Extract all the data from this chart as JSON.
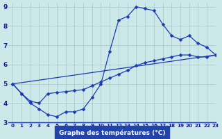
{
  "xlabel": "Graphe des températures (°C)",
  "xlim": [
    -0.5,
    23
  ],
  "ylim": [
    3,
    9.2
  ],
  "yticks": [
    3,
    4,
    5,
    6,
    7,
    8,
    9
  ],
  "xticks": [
    0,
    1,
    2,
    3,
    4,
    5,
    6,
    7,
    8,
    9,
    10,
    11,
    12,
    13,
    14,
    15,
    16,
    17,
    18,
    19,
    20,
    21,
    22,
    23
  ],
  "background_color": "#cce8e8",
  "grid_color": "#aacccc",
  "line_color": "#1a3ab5",
  "line1_x": [
    0,
    1,
    2,
    3,
    4,
    5,
    6,
    7,
    8,
    9,
    10,
    11,
    12,
    13,
    14,
    15,
    16,
    17,
    18,
    19,
    20,
    21,
    22,
    23
  ],
  "line1_y": [
    5.0,
    4.5,
    4.0,
    3.7,
    3.4,
    3.3,
    3.55,
    3.55,
    3.7,
    4.3,
    5.0,
    6.7,
    8.3,
    8.5,
    9.0,
    8.9,
    8.8,
    8.1,
    7.5,
    7.3,
    7.5,
    7.1,
    6.9,
    6.5
  ],
  "line2_x": [
    0,
    1,
    2,
    3,
    4,
    5,
    6,
    7,
    8,
    9,
    10,
    11,
    12,
    13,
    14,
    15,
    16,
    17,
    18,
    19,
    20,
    21,
    22,
    23
  ],
  "line2_y": [
    5.0,
    4.5,
    4.1,
    4.0,
    4.5,
    4.55,
    4.6,
    4.65,
    4.7,
    4.9,
    5.1,
    5.3,
    5.5,
    5.7,
    5.95,
    6.1,
    6.2,
    6.3,
    6.4,
    6.5,
    6.5,
    6.4,
    6.4,
    6.5
  ],
  "line3_x": [
    0,
    23
  ],
  "line3_y": [
    5.0,
    6.5
  ],
  "xlabel_bar_color": "#2244aa",
  "tick_label_color": "#1a1a8a",
  "xlabel_fontsize": 6.5,
  "tick_fontsize_x": 5.2,
  "tick_fontsize_y": 6.5
}
